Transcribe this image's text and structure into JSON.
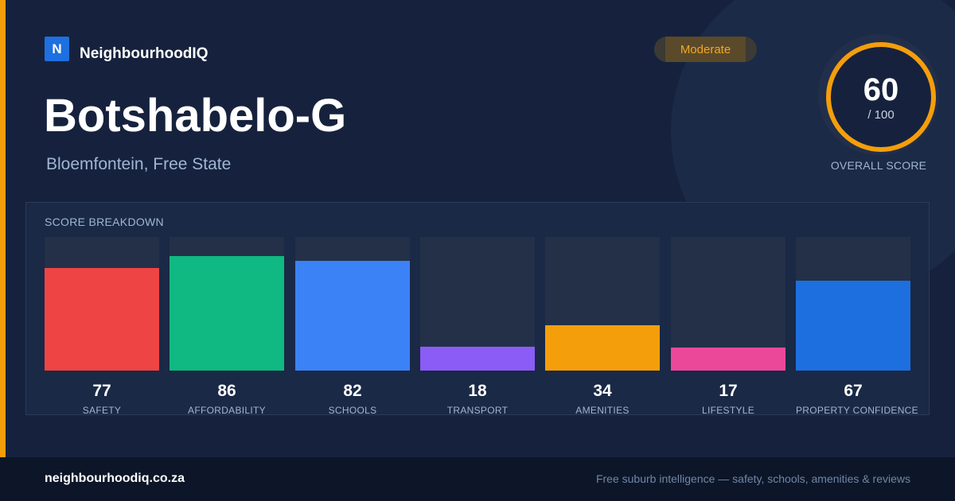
{
  "brand": {
    "logo_letter": "N",
    "name": "NeighbourhoodIQ"
  },
  "suburb": {
    "name": "Botshabelo-G",
    "location": "Bloemfontein, Free State"
  },
  "badge": {
    "label": "Moderate",
    "color": "#f5a623"
  },
  "overall": {
    "value": "60",
    "max_label": "/ 100",
    "label": "OVERALL SCORE",
    "score": 60,
    "ring_color": "#f59e0b"
  },
  "breakdown": {
    "title": "SCORE BREAKDOWN",
    "items": [
      {
        "label": "SAFETY",
        "value": "77",
        "score": 77,
        "color": "#ef4444"
      },
      {
        "label": "AFFORDABILITY",
        "value": "86",
        "score": 86,
        "color": "#10b981"
      },
      {
        "label": "SCHOOLS",
        "value": "82",
        "score": 82,
        "color": "#3b82f6"
      },
      {
        "label": "TRANSPORT",
        "value": "18",
        "score": 18,
        "color": "#8b5cf6"
      },
      {
        "label": "AMENITIES",
        "value": "34",
        "score": 34,
        "color": "#f59e0b"
      },
      {
        "label": "LIFESTYLE",
        "value": "17",
        "score": 17,
        "color": "#ec4899"
      },
      {
        "label": "PROPERTY CONFIDENCE",
        "value": "67",
        "score": 67,
        "color": "#1d6fe0"
      }
    ]
  },
  "footer": {
    "url": "neighbourhoodiq.co.za",
    "tagline": "Free suburb intelligence — safety, schools, amenities & reviews"
  }
}
